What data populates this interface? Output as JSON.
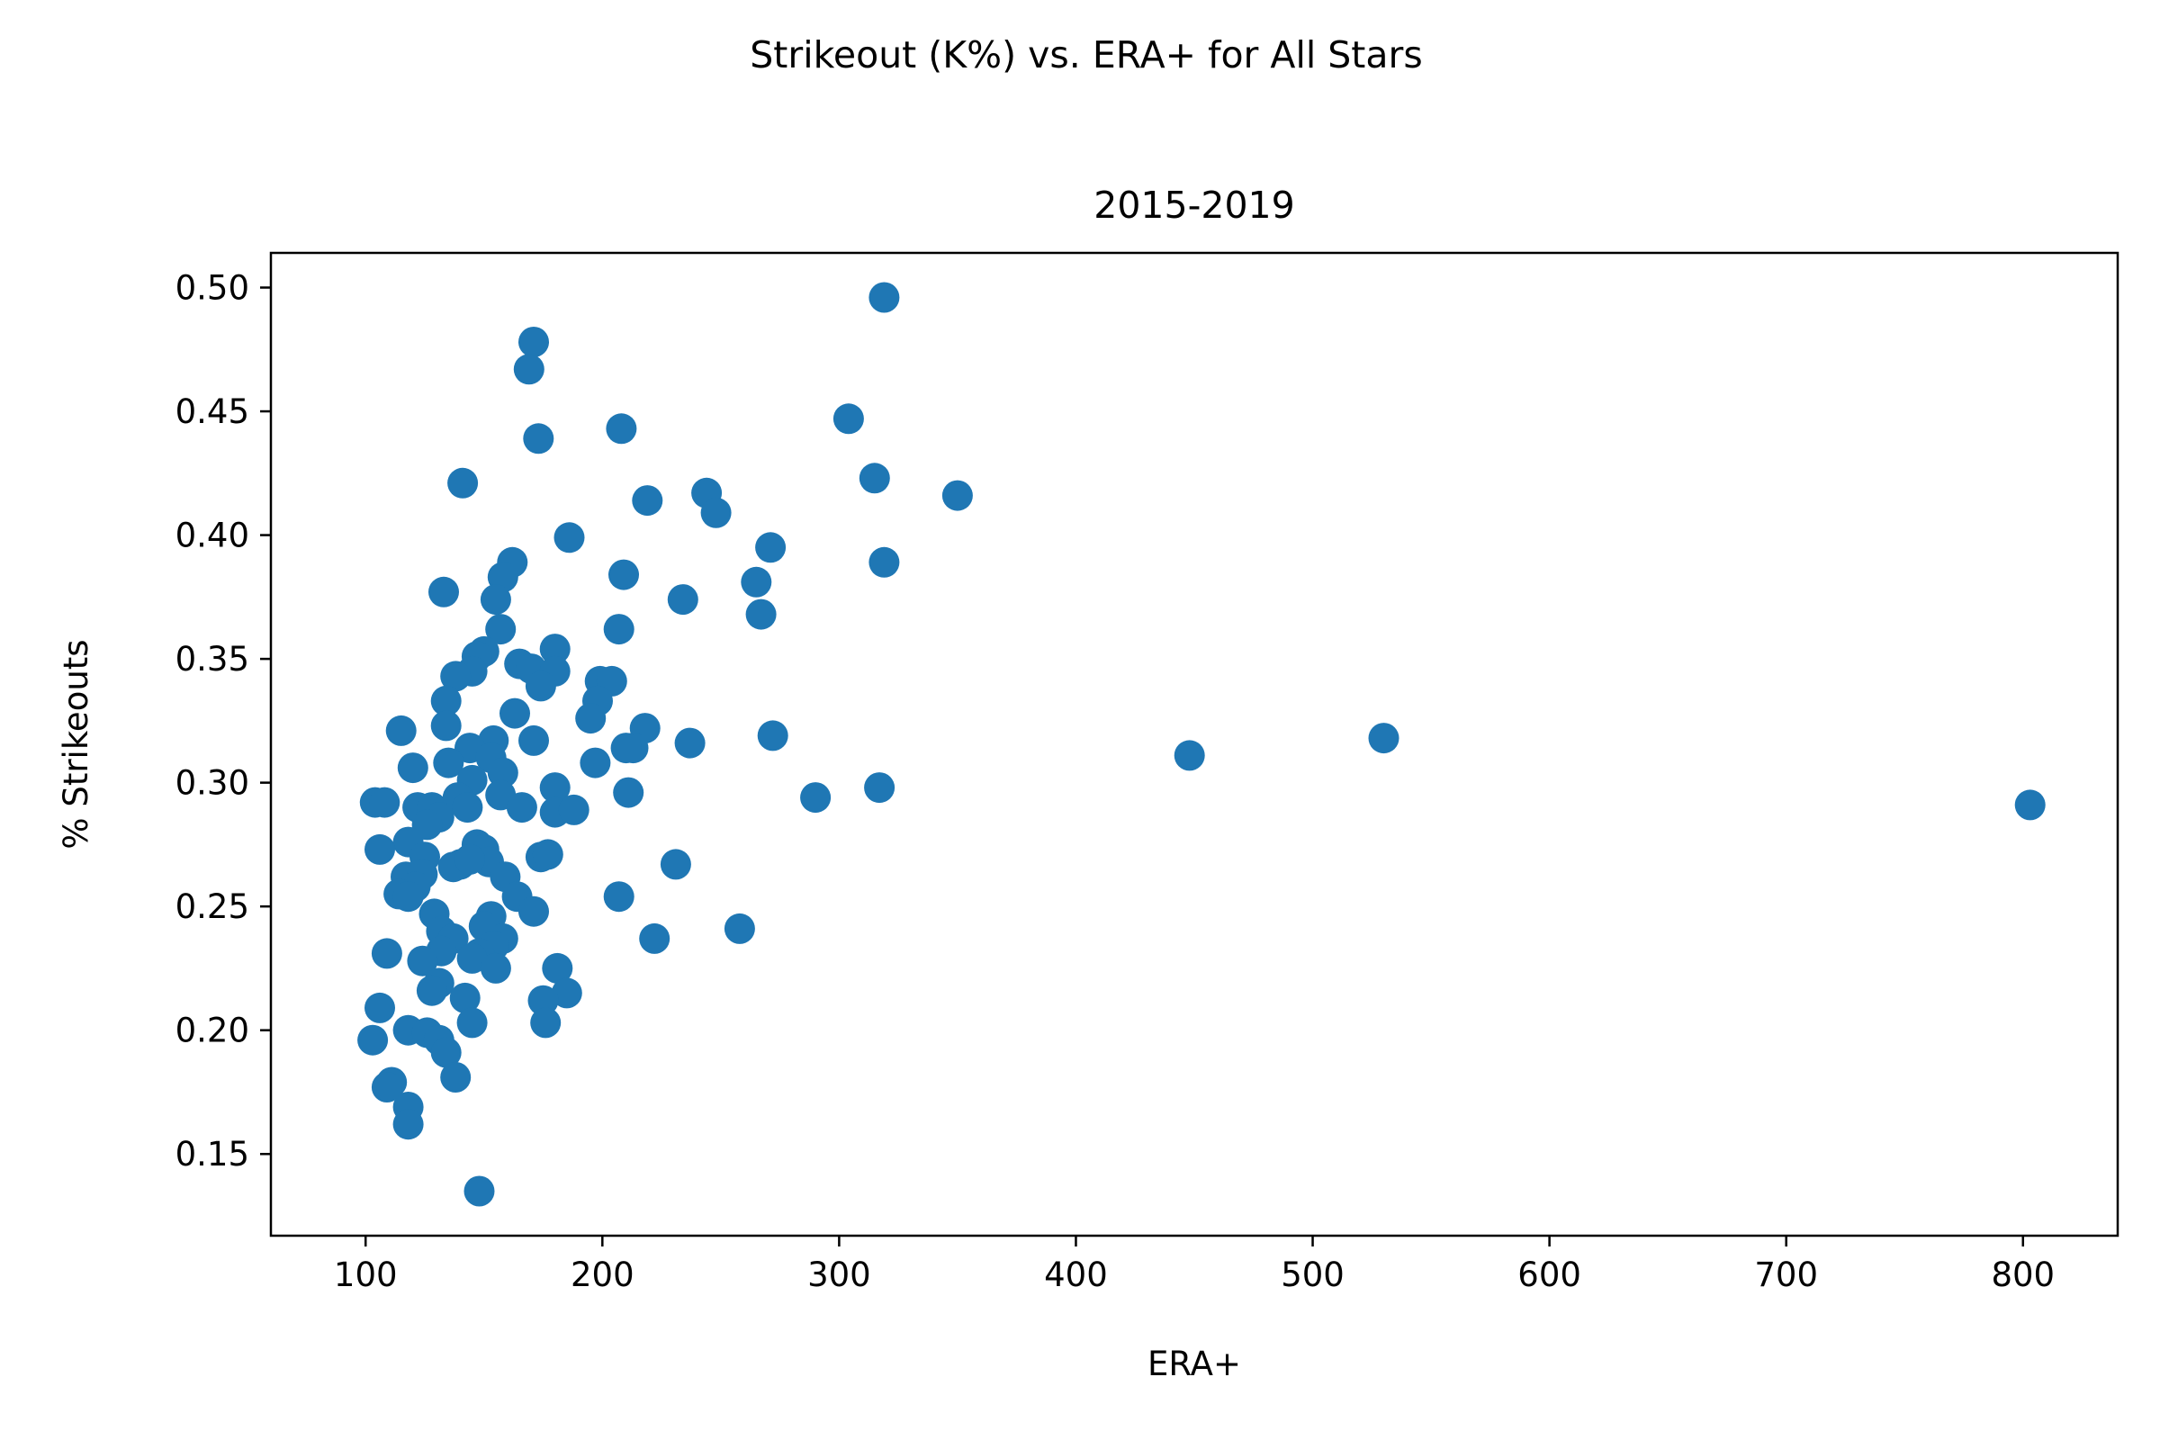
{
  "figure": {
    "suptitle": "Strikeout (K%) vs. ERA+ for All Stars"
  },
  "chart_data": {
    "type": "scatter",
    "title": "2015-2019",
    "xlabel": "ERA+",
    "ylabel": "% Strikeouts",
    "xlim": [
      60,
      840
    ],
    "ylim": [
      0.117,
      0.514
    ],
    "xticks": [
      100,
      200,
      300,
      400,
      500,
      600,
      700,
      800
    ],
    "yticks": [
      0.15,
      0.2,
      0.25,
      0.3,
      0.35,
      0.4,
      0.45,
      0.5
    ],
    "xtick_labels": [
      "100",
      "200",
      "300",
      "400",
      "500",
      "600",
      "700",
      "800"
    ],
    "ytick_labels": [
      "0.15",
      "0.20",
      "0.25",
      "0.30",
      "0.35",
      "0.40",
      "0.45",
      "0.50"
    ],
    "grid": false,
    "marker_color": "#1f77b4",
    "points": [
      [
        319,
        0.496
      ],
      [
        171,
        0.478
      ],
      [
        169,
        0.467
      ],
      [
        173,
        0.439
      ],
      [
        208,
        0.443
      ],
      [
        304,
        0.447
      ],
      [
        141,
        0.421
      ],
      [
        315,
        0.423
      ],
      [
        350,
        0.416
      ],
      [
        219,
        0.414
      ],
      [
        244,
        0.417
      ],
      [
        248,
        0.409
      ],
      [
        186,
        0.399
      ],
      [
        271,
        0.395
      ],
      [
        319,
        0.389
      ],
      [
        162,
        0.389
      ],
      [
        158,
        0.383
      ],
      [
        209,
        0.384
      ],
      [
        265,
        0.381
      ],
      [
        133,
        0.377
      ],
      [
        155,
        0.374
      ],
      [
        234,
        0.374
      ],
      [
        267,
        0.368
      ],
      [
        157,
        0.362
      ],
      [
        207,
        0.362
      ],
      [
        180,
        0.354
      ],
      [
        150,
        0.353
      ],
      [
        147,
        0.351
      ],
      [
        165,
        0.348
      ],
      [
        170,
        0.346
      ],
      [
        180,
        0.345
      ],
      [
        145,
        0.345
      ],
      [
        138,
        0.343
      ],
      [
        174,
        0.339
      ],
      [
        199,
        0.341
      ],
      [
        204,
        0.341
      ],
      [
        134,
        0.333
      ],
      [
        198,
        0.333
      ],
      [
        195,
        0.326
      ],
      [
        163,
        0.328
      ],
      [
        115,
        0.321
      ],
      [
        134,
        0.323
      ],
      [
        218,
        0.322
      ],
      [
        272,
        0.319
      ],
      [
        171,
        0.317
      ],
      [
        237,
        0.316
      ],
      [
        154,
        0.317
      ],
      [
        213,
        0.314
      ],
      [
        144,
        0.314
      ],
      [
        210,
        0.314
      ],
      [
        153,
        0.31
      ],
      [
        135,
        0.308
      ],
      [
        120,
        0.306
      ],
      [
        197,
        0.308
      ],
      [
        158,
        0.304
      ],
      [
        145,
        0.301
      ],
      [
        180,
        0.298
      ],
      [
        211,
        0.296
      ],
      [
        317,
        0.298
      ],
      [
        290,
        0.294
      ],
      [
        139,
        0.294
      ],
      [
        157,
        0.295
      ],
      [
        104,
        0.292
      ],
      [
        108,
        0.292
      ],
      [
        122,
        0.29
      ],
      [
        128,
        0.29
      ],
      [
        143,
        0.29
      ],
      [
        166,
        0.29
      ],
      [
        180,
        0.288
      ],
      [
        188,
        0.289
      ],
      [
        131,
        0.286
      ],
      [
        126,
        0.283
      ],
      [
        803,
        0.291
      ],
      [
        448,
        0.311
      ],
      [
        530,
        0.318
      ],
      [
        147,
        0.275
      ],
      [
        150,
        0.273
      ],
      [
        118,
        0.276
      ],
      [
        106,
        0.273
      ],
      [
        174,
        0.27
      ],
      [
        177,
        0.271
      ],
      [
        125,
        0.27
      ],
      [
        140,
        0.267
      ],
      [
        137,
        0.266
      ],
      [
        152,
        0.268
      ],
      [
        144,
        0.269
      ],
      [
        117,
        0.262
      ],
      [
        231,
        0.267
      ],
      [
        124,
        0.263
      ],
      [
        159,
        0.262
      ],
      [
        121,
        0.258
      ],
      [
        164,
        0.254
      ],
      [
        114,
        0.255
      ],
      [
        118,
        0.254
      ],
      [
        207,
        0.254
      ],
      [
        171,
        0.248
      ],
      [
        129,
        0.247
      ],
      [
        153,
        0.246
      ],
      [
        150,
        0.242
      ],
      [
        258,
        0.241
      ],
      [
        132,
        0.24
      ],
      [
        137,
        0.237
      ],
      [
        158,
        0.237
      ],
      [
        222,
        0.237
      ],
      [
        154,
        0.234
      ],
      [
        148,
        0.231
      ],
      [
        132,
        0.232
      ],
      [
        109,
        0.231
      ],
      [
        145,
        0.229
      ],
      [
        124,
        0.228
      ],
      [
        155,
        0.225
      ],
      [
        181,
        0.225
      ],
      [
        131,
        0.219
      ],
      [
        128,
        0.216
      ],
      [
        185,
        0.215
      ],
      [
        142,
        0.213
      ],
      [
        175,
        0.212
      ],
      [
        106,
        0.209
      ],
      [
        145,
        0.203
      ],
      [
        176,
        0.203
      ],
      [
        118,
        0.2
      ],
      [
        126,
        0.199
      ],
      [
        131,
        0.196
      ],
      [
        103,
        0.196
      ],
      [
        134,
        0.191
      ],
      [
        138,
        0.181
      ],
      [
        111,
        0.179
      ],
      [
        109,
        0.177
      ],
      [
        118,
        0.169
      ],
      [
        118,
        0.162
      ],
      [
        148,
        0.135
      ]
    ]
  }
}
